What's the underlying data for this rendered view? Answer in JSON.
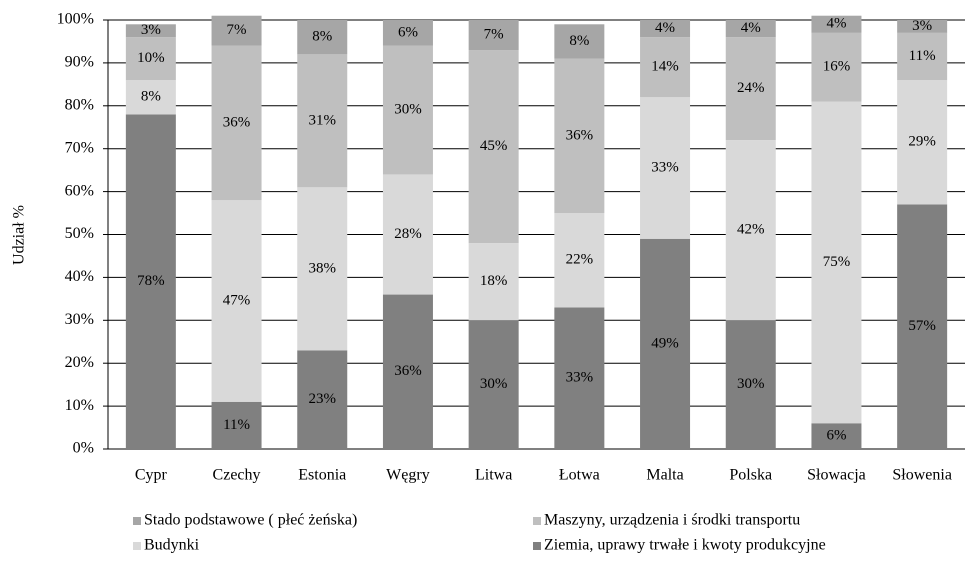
{
  "chart_data": {
    "type": "stacked_bar",
    "y_axis_label": "Udział %",
    "categories": [
      "Cypr",
      "Czechy",
      "Estonia",
      "Węgry",
      "Litwa",
      "Łotwa",
      "Malta",
      "Polska",
      "Słowacja",
      "Słowenia"
    ],
    "series": [
      {
        "name": "Ziemia, uprawy trwałe i kwoty produkcyjne",
        "color": "#808080",
        "values": [
          78,
          11,
          23,
          36,
          30,
          33,
          49,
          30,
          6,
          57
        ],
        "value_labels": [
          "78%",
          "11%",
          "23%",
          "36%",
          "30%",
          "33%",
          "49%",
          "30%",
          "6%",
          "57%"
        ]
      },
      {
        "name": "Budynki",
        "color": "#d9d9d9",
        "values": [
          8,
          47,
          38,
          28,
          18,
          22,
          33,
          42,
          75,
          29
        ],
        "value_labels": [
          "8%",
          "47%",
          "38%",
          "28%",
          "18%",
          "22%",
          "33%",
          "42%",
          "75%",
          "29%"
        ]
      },
      {
        "name": "Maszyny, urządzenia i środki transportu",
        "color": "#bfbfbf",
        "values": [
          10,
          36,
          31,
          30,
          45,
          36,
          14,
          24,
          16,
          11
        ],
        "value_labels": [
          "10%",
          "36%",
          "31%",
          "30%",
          "45%",
          "36%",
          "14%",
          "24%",
          "16%",
          "11%"
        ]
      },
      {
        "name": "Stado podstawowe ( płeć żeńska)",
        "color": "#a6a6a6",
        "values": [
          3,
          7,
          8,
          6,
          7,
          8,
          4,
          4,
          4,
          3
        ],
        "value_labels": [
          "3%",
          "7%",
          "8%",
          "6%",
          "7%",
          "8%",
          "4%",
          "4%",
          "4%",
          "3%"
        ]
      }
    ],
    "ylim": [
      0,
      100
    ],
    "yticks": [
      {
        "value": 0,
        "label": "0%"
      },
      {
        "value": 10,
        "label": "10%"
      },
      {
        "value": 20,
        "label": "20%"
      },
      {
        "value": 30,
        "label": "30%"
      },
      {
        "value": 40,
        "label": "40%"
      },
      {
        "value": 50,
        "label": "50%"
      },
      {
        "value": 60,
        "label": "60%"
      },
      {
        "value": 70,
        "label": "70%"
      },
      {
        "value": 80,
        "label": "80%"
      },
      {
        "value": 90,
        "label": "90%"
      },
      {
        "value": 100,
        "label": "100%"
      }
    ],
    "grid": true
  }
}
